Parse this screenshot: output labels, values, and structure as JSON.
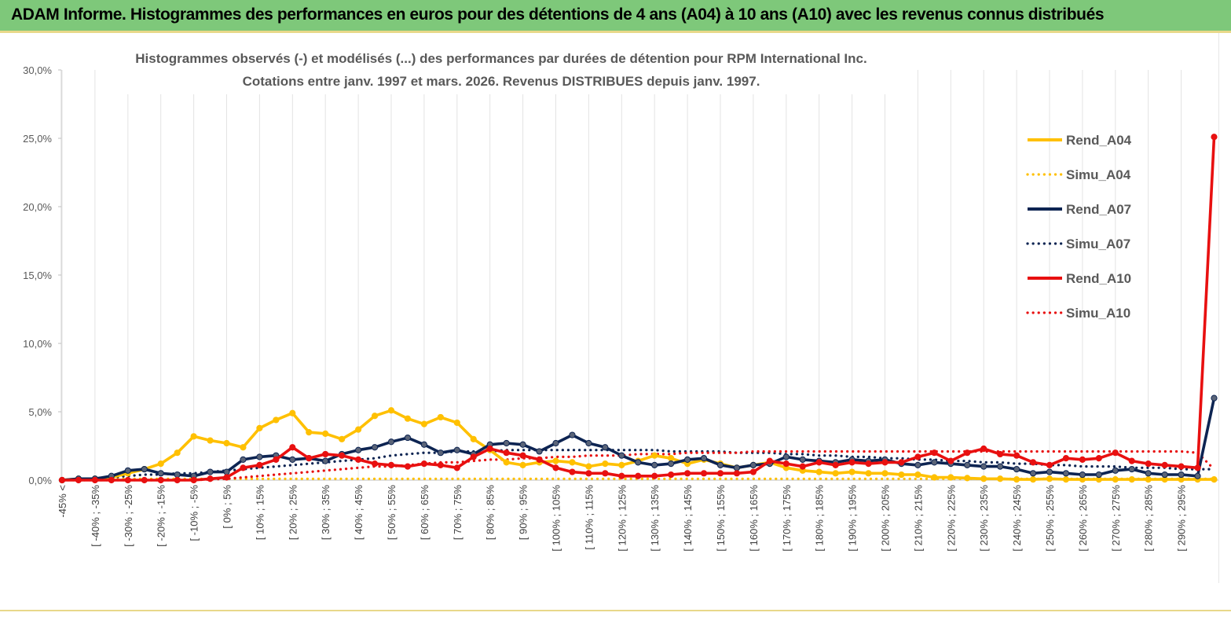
{
  "banner": {
    "title": "ADAM Informe. Histogrammes des performances en euros pour des détentions de 4 ans (A04) à 10 ans (A10) avec les revenus connus distribués"
  },
  "chart_data": {
    "type": "line",
    "title": "Histogrammes observés (-) et modélisés (...) des performances par durées de détention pour RPM International Inc.",
    "subtitle": "Cotations entre janv. 1997 et mars. 2026. Revenus DISTRIBUES depuis janv. 1997.",
    "xlabel": "",
    "ylabel": "",
    "ylim": [
      0,
      30
    ],
    "y_ticks": [
      "0,0%",
      "5,0%",
      "10,0%",
      "15,0%",
      "20,0%",
      "25,0%",
      "30,0%"
    ],
    "grid": "vertical",
    "legend_position": "right",
    "x_tick_labels": [
      "-45% <",
      "[ -40% ; -35%",
      "[ -30% ; -25%",
      "[ -20% ; -15%",
      "[ -10% ; -5%",
      "[ 0% ; 5%",
      "[ 10% ; 15%",
      "[ 20% ; 25%",
      "[ 30% ; 35%",
      "[ 40% ; 45%",
      "[ 50% ; 55%",
      "[ 60% ; 65%",
      "[ 70% ; 75%",
      "[ 80% ; 85%",
      "[ 90% ; 95%",
      "[ 100% ; 105%",
      "[ 110% ; 115%",
      "[ 120% ; 125%",
      "[ 130% ; 135%",
      "[ 140% ; 145%",
      "[ 150% ; 155%",
      "[ 160% ; 165%",
      "[ 170% ; 175%",
      "[ 180% ; 185%",
      "[ 190% ; 195%",
      "[ 200% ; 205%",
      "[ 210% ; 215%",
      "[ 220% ; 225%",
      "[ 230% ; 235%",
      "[ 240% ; 245%",
      "[ 250% ; 255%",
      "[ 260% ; 265%",
      "[ 270% ; 275%",
      "[ 280% ; 285%",
      "[ 290% ; 295%"
    ],
    "series": [
      {
        "name": "Rend_A04",
        "style": "solid-markers",
        "color": "#ffc000",
        "values": [
          0,
          0.1,
          0.1,
          0.2,
          0.5,
          0.8,
          1.2,
          2.0,
          3.2,
          2.9,
          2.7,
          2.4,
          3.8,
          4.4,
          4.9,
          3.5,
          3.4,
          3.0,
          3.7,
          4.7,
          5.1,
          4.5,
          4.1,
          4.6,
          4.2,
          3.0,
          2.2,
          1.3,
          1.1,
          1.3,
          1.4,
          1.3,
          1.0,
          1.2,
          1.1,
          1.4,
          1.8,
          1.6,
          1.2,
          1.5,
          1.2,
          0.9,
          1.1,
          1.3,
          0.9,
          0.7,
          0.6,
          0.5,
          0.6,
          0.5,
          0.5,
          0.4,
          0.4,
          0.2,
          0.2,
          0.15,
          0.1,
          0.1,
          0.05,
          0.05,
          0.1,
          0.05,
          0.05,
          0.05,
          0.05,
          0.05,
          0.05,
          0.05,
          0.05,
          0.05,
          0.05
        ]
      },
      {
        "name": "Simu_A04",
        "style": "dotted",
        "color": "#ffc000",
        "values": [
          0,
          0.1,
          0.1,
          0.1,
          0.1,
          0.1,
          0.1,
          0.1,
          0.1,
          0.1,
          0.1,
          0.1,
          0.1,
          0.1,
          0.1,
          0.1,
          0.1,
          0.1,
          0.1,
          0.1,
          0.1,
          0.1,
          0.1,
          0.1,
          0.1,
          0.1,
          0.1,
          0.1,
          0.1,
          0.1,
          0.1,
          0.1,
          0.1,
          0.1,
          0.1,
          0.1,
          0.1,
          0.1,
          0.1,
          0.1,
          0.1,
          0.1,
          0.1,
          0.1,
          0.1,
          0.1,
          0.1,
          0.1,
          0.1,
          0.1,
          0.1,
          0.1,
          0.1,
          0.1,
          0.1,
          0.1,
          0.1,
          0.1,
          0.1,
          0.1,
          0.1,
          0.1,
          0.1,
          0.1,
          0.1,
          0.1,
          0.1,
          0.1,
          0.1,
          0.1,
          0.1
        ]
      },
      {
        "name": "Rend_A07",
        "style": "solid-markers",
        "color": "#0d2452",
        "values": [
          0,
          0.1,
          0.1,
          0.3,
          0.7,
          0.8,
          0.5,
          0.4,
          0.3,
          0.6,
          0.6,
          1.5,
          1.7,
          1.8,
          1.5,
          1.6,
          1.4,
          1.9,
          2.2,
          2.4,
          2.8,
          3.1,
          2.6,
          2.0,
          2.2,
          1.9,
          2.6,
          2.7,
          2.6,
          2.1,
          2.7,
          3.3,
          2.7,
          2.4,
          1.8,
          1.3,
          1.1,
          1.2,
          1.5,
          1.6,
          1.1,
          0.9,
          1.1,
          1.2,
          1.7,
          1.5,
          1.4,
          1.3,
          1.5,
          1.4,
          1.5,
          1.2,
          1.1,
          1.3,
          1.2,
          1.1,
          1.0,
          1.0,
          0.8,
          0.5,
          0.6,
          0.5,
          0.4,
          0.4,
          0.7,
          0.8,
          0.5,
          0.4,
          0.4,
          0.3,
          6.0
        ]
      },
      {
        "name": "Simu_A07",
        "style": "dotted",
        "color": "#0d2452",
        "values": [
          0,
          0.05,
          0.1,
          0.2,
          0.3,
          0.4,
          0.4,
          0.5,
          0.5,
          0.6,
          0.7,
          0.8,
          0.9,
          1.0,
          1.1,
          1.2,
          1.3,
          1.4,
          1.5,
          1.6,
          1.8,
          1.9,
          2.0,
          2.0,
          2.1,
          2.1,
          2.1,
          2.2,
          2.2,
          2.2,
          2.2,
          2.2,
          2.2,
          2.2,
          2.2,
          2.2,
          2.2,
          2.1,
          2.1,
          2.1,
          2.1,
          2.0,
          2.0,
          2.0,
          1.9,
          1.9,
          1.8,
          1.8,
          1.7,
          1.7,
          1.6,
          1.6,
          1.5,
          1.5,
          1.4,
          1.4,
          1.3,
          1.3,
          1.2,
          1.2,
          1.1,
          1.1,
          1.0,
          1.0,
          1.0,
          0.9,
          0.9,
          0.9,
          0.8,
          0.8,
          0.8
        ]
      },
      {
        "name": "Rend_A10",
        "style": "solid-markers",
        "color": "#e81010",
        "values": [
          0,
          0,
          0,
          0,
          0,
          0,
          0,
          0,
          0,
          0.1,
          0.2,
          0.9,
          1.1,
          1.5,
          2.4,
          1.6,
          1.9,
          1.8,
          1.5,
          1.2,
          1.1,
          1.0,
          1.2,
          1.1,
          0.9,
          1.7,
          2.3,
          2.0,
          1.8,
          1.5,
          0.9,
          0.6,
          0.5,
          0.5,
          0.3,
          0.3,
          0.3,
          0.4,
          0.5,
          0.5,
          0.5,
          0.5,
          0.6,
          1.4,
          1.2,
          1.0,
          1.3,
          1.1,
          1.3,
          1.2,
          1.3,
          1.3,
          1.7,
          2.0,
          1.4,
          2.0,
          2.3,
          1.9,
          1.8,
          1.3,
          1.1,
          1.6,
          1.5,
          1.6,
          2.0,
          1.4,
          1.2,
          1.1,
          1.0,
          0.9,
          25.1
        ]
      },
      {
        "name": "Simu_A10",
        "style": "dotted",
        "color": "#e81010",
        "values": [
          0,
          0,
          0,
          0,
          0,
          0,
          0,
          0,
          0,
          0.05,
          0.1,
          0.2,
          0.3,
          0.4,
          0.5,
          0.6,
          0.7,
          0.8,
          0.9,
          1.0,
          1.0,
          1.1,
          1.2,
          1.3,
          1.3,
          1.4,
          1.5,
          1.5,
          1.6,
          1.6,
          1.7,
          1.7,
          1.8,
          1.8,
          1.8,
          1.9,
          1.9,
          1.9,
          2.0,
          2.0,
          2.0,
          2.0,
          2.1,
          2.1,
          2.1,
          2.1,
          2.1,
          2.1,
          2.1,
          2.1,
          2.1,
          2.1,
          2.1,
          2.1,
          2.1,
          2.1,
          2.1,
          2.1,
          2.1,
          2.1,
          2.1,
          2.1,
          2.1,
          2.1,
          2.1,
          2.1,
          2.1,
          2.1,
          2.1,
          2.0,
          0.8
        ]
      }
    ]
  }
}
